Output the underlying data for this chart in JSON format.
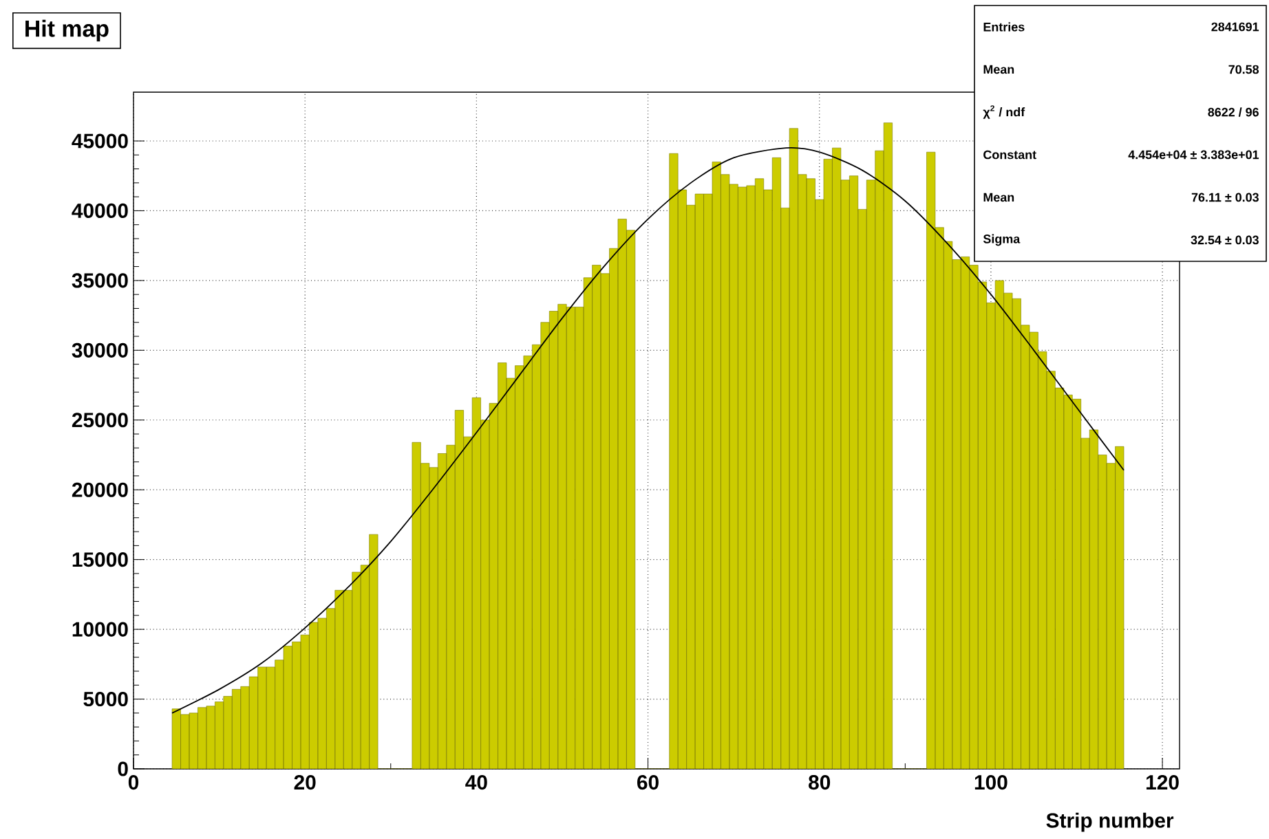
{
  "chart_data": {
    "type": "histogram",
    "title": "Hit map",
    "xlabel": "Strip number",
    "color": "#cccc00",
    "bins": [
      4.5,
      5.5,
      6.5,
      7.5,
      8.5,
      9.5,
      10.5,
      11.5,
      12.5,
      13.5,
      14.5,
      15.5,
      16.5,
      17.5,
      18.5,
      19.5,
      20.5,
      21.5,
      22.5,
      23.5,
      24.5,
      25.5,
      26.5,
      27.5,
      28.5,
      29.5,
      30.5,
      31.5,
      32.5,
      33.5,
      34.5,
      35.5,
      36.5,
      37.5,
      38.5,
      39.5,
      40.5,
      41.5,
      42.5,
      43.5,
      44.5,
      45.5,
      46.5,
      47.5,
      48.5,
      49.5,
      50.5,
      51.5,
      52.5,
      53.5,
      54.5,
      55.5,
      56.5,
      57.5,
      58.5,
      59.5,
      60.5,
      61.5,
      62.5,
      63.5,
      64.5,
      65.5,
      66.5,
      67.5,
      68.5,
      69.5,
      70.5,
      71.5,
      72.5,
      73.5,
      74.5,
      75.5,
      76.5,
      77.5,
      78.5,
      79.5,
      80.5,
      81.5,
      82.5,
      83.5,
      84.5,
      85.5,
      86.5,
      87.5,
      88.5,
      89.5,
      90.5,
      91.5,
      92.5,
      93.5,
      94.5,
      95.5,
      96.5,
      97.5,
      98.5,
      99.5,
      100.5,
      101.5,
      102.5,
      103.5,
      104.5,
      105.5,
      106.5,
      107.5,
      108.5,
      109.5,
      110.5,
      111.5,
      112.5,
      113.5,
      114.5,
      115.5
    ],
    "values": [
      4300,
      3900,
      4000,
      4400,
      4500,
      4800,
      5200,
      5700,
      5900,
      6600,
      7300,
      7300,
      7800,
      8800,
      9100,
      9600,
      10500,
      10800,
      11500,
      12800,
      12800,
      14100,
      14600,
      16800,
      0,
      0,
      0,
      0,
      23400,
      21900,
      21600,
      22600,
      23200,
      25700,
      23800,
      26600,
      25000,
      26200,
      29100,
      28000,
      28900,
      29600,
      30400,
      32000,
      32800,
      33300,
      33100,
      33100,
      35200,
      36100,
      35500,
      37300,
      39400,
      38600,
      0,
      0,
      0,
      0,
      44100,
      41500,
      40400,
      41200,
      41200,
      43500,
      42600,
      41900,
      41700,
      41800,
      42300,
      41500,
      43800,
      40200,
      45900,
      42600,
      42300,
      40800,
      43700,
      44500,
      42200,
      42500,
      40100,
      42200,
      44300,
      46300,
      0,
      0,
      0,
      0,
      44200,
      38800,
      37800,
      36500,
      36700,
      36100,
      34900,
      33400,
      35000,
      34100,
      33700,
      31800,
      31300,
      29900,
      28500,
      27300,
      26800,
      26500,
      23700,
      24300,
      22500,
      21900,
      23100
    ],
    "series": [
      {
        "type": "line",
        "color": "#000000",
        "x": [
          4.5,
          10,
          15,
          20,
          25,
          30,
          35,
          40,
          45,
          50,
          55,
          60,
          65,
          70,
          76.11,
          80,
          85,
          90,
          95,
          100,
          105,
          110,
          115.5
        ],
        "values": [
          4000,
          5700,
          7600,
          10100,
          13000,
          16300,
          20100,
          24100,
          28200,
          32300,
          36100,
          39400,
          42000,
          43800,
          44500,
          44200,
          42900,
          40700,
          37600,
          34000,
          30000,
          25900,
          21400
        ]
      }
    ],
    "xlim": [
      0,
      122
    ],
    "ylim": [
      0,
      48500
    ],
    "xticks": [
      0,
      20,
      40,
      60,
      80,
      100,
      120
    ],
    "yticks": [
      0,
      5000,
      10000,
      15000,
      20000,
      25000,
      30000,
      35000,
      40000,
      45000
    ],
    "grid": true,
    "annotations": [
      "Entries",
      "2841691",
      "Mean",
      "70.58",
      "χ$^{2}$ / ndf",
      "8622 / 96",
      "Constant",
      "4.454e+04 ± 3.383e+01",
      "Mean",
      "76.11 ± 0.03",
      "Sigma",
      "32.54 ± 0.03"
    ]
  }
}
